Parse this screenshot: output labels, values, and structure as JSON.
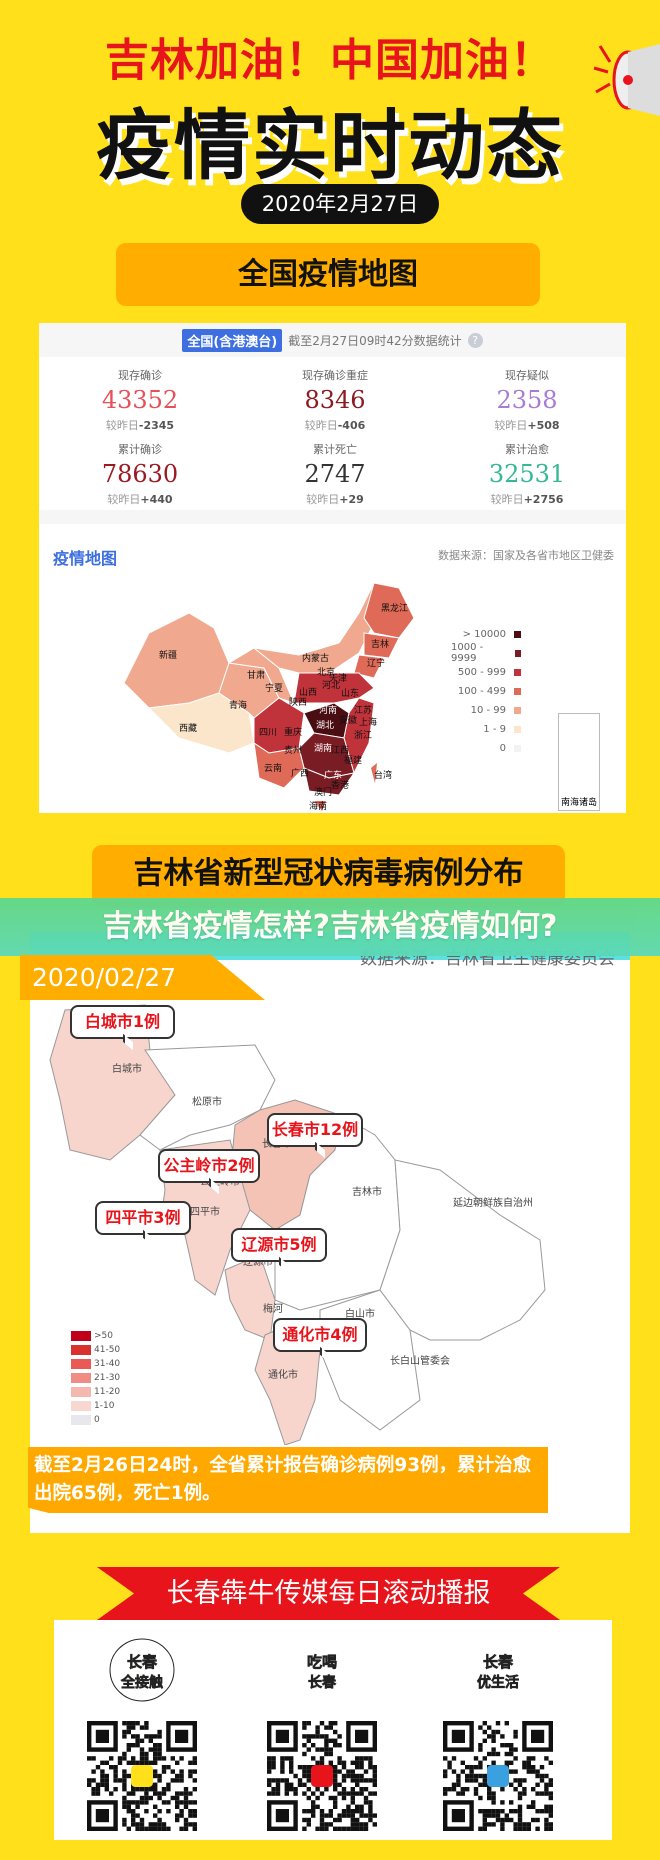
{
  "header": {
    "slogan": "吉林加油！中国加油！",
    "title": "疫情实时动态",
    "date": "2020年2月27日",
    "megaphone_icon": "megaphone-icon"
  },
  "national": {
    "banner": "全国疫情地图",
    "badge": "全国(含港澳台)",
    "as_of": "截至2月27日09时42分数据统计",
    "help": "?",
    "stats": [
      {
        "label": "现存确诊",
        "value": "43352",
        "delta_label": "较昨日",
        "delta": "-2345",
        "color": "#e5505a"
      },
      {
        "label": "现存确诊重症",
        "value": "8346",
        "delta_label": "较昨日",
        "delta": "-406",
        "color": "#8b1c24"
      },
      {
        "label": "现存疑似",
        "value": "2358",
        "delta_label": "较昨日",
        "delta": "+508",
        "color": "#a77cd6"
      },
      {
        "label": "累计确诊",
        "value": "78630",
        "delta_label": "较昨日",
        "delta": "+440",
        "color": "#9b1b24"
      },
      {
        "label": "累计死亡",
        "value": "2747",
        "delta_label": "较昨日",
        "delta": "+29",
        "color": "#333333"
      },
      {
        "label": "累计治愈",
        "value": "32531",
        "delta_label": "较昨日",
        "delta": "+2756",
        "color": "#35b896"
      }
    ],
    "map_title": "疫情地图",
    "map_source": "数据来源：国家及各省市地区卫健委",
    "provinces": [
      "新疆",
      "西藏",
      "青海",
      "甘肃",
      "内蒙古",
      "黑龙江",
      "吉林",
      "辽宁",
      "北京",
      "天津",
      "河北",
      "宁夏",
      "山西",
      "山东",
      "陕西",
      "河南",
      "江苏",
      "安徽",
      "上海",
      "四川",
      "重庆",
      "湖北",
      "浙江",
      "贵州",
      "湖南",
      "江西",
      "福建",
      "云南",
      "广西",
      "广东",
      "台湾",
      "香港",
      "澳门",
      "海南"
    ],
    "legend": [
      {
        "label": "> 10000",
        "color": "#4a0d12"
      },
      {
        "label": "1000 - 9999",
        "color": "#7a1c24"
      },
      {
        "label": "500 - 999",
        "color": "#c0333a"
      },
      {
        "label": "100 - 499",
        "color": "#e06a58"
      },
      {
        "label": "10 - 99",
        "color": "#f0a88e"
      },
      {
        "label": "1 - 9",
        "color": "#fbe6cc"
      },
      {
        "label": "0",
        "color": "#f2f2f2"
      }
    ],
    "inset_label": "南海诸岛"
  },
  "jilin": {
    "banner": "吉林省新型冠状病毒病例分布",
    "overlay_title": "吉林省疫情怎样?吉林省疫情如何?",
    "date": "2020/02/27",
    "source": "数据来源：吉林省卫生健康委员会",
    "regions": [
      "白城市",
      "松原市",
      "长春市",
      "公主岭市",
      "四平市",
      "吉林市",
      "延边朝鲜族自治州",
      "辽源市",
      "梅河",
      "通化市",
      "白山市",
      "长白山管委会"
    ],
    "callouts": [
      "白城市1例",
      "长春市12例",
      "公主岭市2例",
      "四平市3例",
      "辽源市5例",
      "通化市4例"
    ],
    "legend": [
      {
        "label": ">50",
        "color": "#c0001a"
      },
      {
        "label": "41-50",
        "color": "#d9322e"
      },
      {
        "label": "31-40",
        "color": "#ea5a55"
      },
      {
        "label": "21-30",
        "color": "#f08c86"
      },
      {
        "label": "11-20",
        "color": "#f5b8ae"
      },
      {
        "label": "1-10",
        "color": "#f8d7d0"
      },
      {
        "label": "0",
        "color": "#e8e8ec"
      }
    ],
    "note": "截至2月26日24时，全省累计报告确诊病例93例，累计治愈出院65例，死亡1例。"
  },
  "footer": {
    "ribbon": "长春犇牛传媒每日滚动播报",
    "logos": [
      {
        "text": "长春全接触"
      },
      {
        "text": "吃喝长春"
      },
      {
        "text": "长春优生活"
      }
    ],
    "qr_icon": "qr-code-icon"
  }
}
